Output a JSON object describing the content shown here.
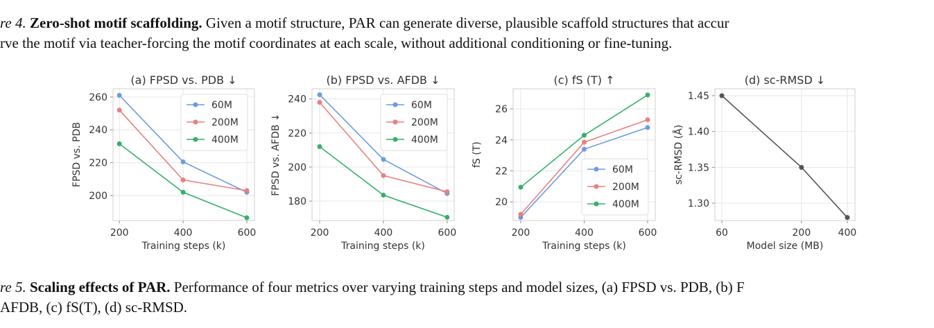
{
  "caption_top": {
    "label": "re 4.",
    "title": "Zero-shot motif scaffolding.",
    "lines": [
      "Given a motif structure, PAR can generate diverse, plausible scaffold structures that accur",
      "rve the motif via teacher-forcing the motif coordinates at each scale, without additional conditioning or fine-tuning."
    ]
  },
  "caption_bottom": {
    "label": "re 5.",
    "title": "Scaling effects of PAR.",
    "lines": [
      "Performance of four metrics over varying training steps and model sizes, (a) FPSD vs. PDB, (b) F",
      "AFDB, (c) fS(T), (d) sc-RMSD."
    ]
  },
  "chart_data": [
    {
      "type": "line",
      "title": "(a) FPSD vs. PDB ↓",
      "xlabel": "Training steps (k)",
      "ylabel": "FPSD vs. PDB",
      "x": [
        200,
        400,
        600
      ],
      "xlim": [
        180,
        624
      ],
      "xticks": [
        200,
        400,
        600
      ],
      "ylim": [
        184.8,
        265
      ],
      "yticks": [
        200,
        220,
        240,
        260
      ],
      "grid": true,
      "legend": "upper right",
      "series": [
        {
          "name": "60M",
          "color": "#6d9be1",
          "values": [
            261,
            220.5,
            202
          ]
        },
        {
          "name": "200M",
          "color": "#e8807f",
          "values": [
            252,
            209.5,
            203
          ]
        },
        {
          "name": "400M",
          "color": "#35b06a",
          "values": [
            231.5,
            202,
            186.5
          ]
        }
      ]
    },
    {
      "type": "line",
      "title": "(b) FPSD vs. AFDB ↓",
      "xlabel": "Training steps (k)",
      "ylabel": "FPSD vs. AFDB ↓",
      "x": [
        200,
        400,
        600
      ],
      "xlim": [
        176,
        622
      ],
      "xticks": [
        200,
        400,
        600
      ],
      "ylim": [
        168.6,
        246
      ],
      "yticks": [
        180,
        200,
        220,
        240
      ],
      "grid": true,
      "legend": "upper right",
      "series": [
        {
          "name": "60M",
          "color": "#6d9be1",
          "values": [
            242.5,
            204.5,
            184.5
          ]
        },
        {
          "name": "200M",
          "color": "#e8807f",
          "values": [
            238,
            195,
            185.5
          ]
        },
        {
          "name": "400M",
          "color": "#35b06a",
          "values": [
            212,
            183.5,
            170.5
          ]
        }
      ]
    },
    {
      "type": "line",
      "title": "(c) fS (T) ↑",
      "xlabel": "Training steps (k)",
      "ylabel": "fS (T)",
      "x": [
        200,
        400,
        600
      ],
      "xlim": [
        176,
        624
      ],
      "xticks": [
        200,
        400,
        600
      ],
      "ylim": [
        18.8,
        27.3
      ],
      "yticks": [
        20,
        22,
        24,
        26
      ],
      "grid": true,
      "legend": "lower right",
      "series": [
        {
          "name": "60M",
          "color": "#6d9be1",
          "values": [
            19,
            23.4,
            24.8
          ]
        },
        {
          "name": "200M",
          "color": "#e8807f",
          "values": [
            19.2,
            23.85,
            25.3
          ]
        },
        {
          "name": "400M",
          "color": "#35b06a",
          "values": [
            20.95,
            24.3,
            26.9
          ]
        }
      ]
    },
    {
      "type": "line",
      "title": "(d) sc-RMSD ↓",
      "xlabel": "Model size (MB)",
      "ylabel": "sc-RMSD (Å)",
      "x": [
        60,
        200,
        400
      ],
      "xscale": "log",
      "xlim": [
        54,
        449
      ],
      "xticks": [
        60,
        200,
        400
      ],
      "ylim": [
        1.2758,
        1.4597
      ],
      "yticks": [
        {
          "value": 1.3,
          "label": "1.30"
        },
        {
          "value": 1.35,
          "label": "1.35"
        },
        {
          "value": 1.4,
          "label": "1.40"
        },
        {
          "value": 1.45,
          "label": "1.45"
        }
      ],
      "grid": true,
      "series": [
        {
          "color": "#555555",
          "values": [
            1.45,
            1.35,
            1.28
          ]
        }
      ]
    }
  ]
}
